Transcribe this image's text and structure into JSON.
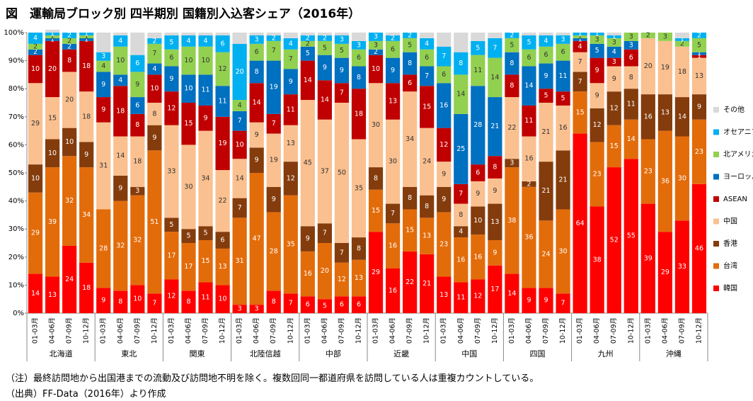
{
  "chart_data": {
    "type": "stacked_bar",
    "title": "図　運輸局ブロック別 四半期別 国籍別入込客シェア（2016年）",
    "categories": [
      "01-03月",
      "04-06月",
      "07-09月",
      "10-12月",
      "01-03月",
      "04-06月",
      "07-09月",
      "10-12月",
      "01-03月",
      "04-06月",
      "07-09月",
      "10-12月",
      "01-03月",
      "04-06月",
      "07-09月",
      "10-12月",
      "01-03月",
      "04-06月",
      "07-09月",
      "10-12月",
      "01-03月",
      "04-06月",
      "07-09月",
      "10-12月",
      "01-03月",
      "04-06月",
      "07-09月",
      "10-12月",
      "01-03月",
      "04-06月",
      "07-09月",
      "10-12月",
      "01-03月",
      "04-06月",
      "07-09月",
      "10-12月",
      "01-03月",
      "04-06月",
      "07-09月",
      "10-12月"
    ],
    "groups": [
      "北海道",
      "東北",
      "関東",
      "北陸信越",
      "中部",
      "近畿",
      "中国",
      "四国",
      "九州",
      "沖縄"
    ],
    "series": [
      {
        "name": "韓国",
        "color": "#ff0000",
        "data_labels": true,
        "values": [
          14,
          13,
          24,
          18,
          9,
          8,
          10,
          7,
          12,
          8,
          11,
          10,
          3,
          3,
          8,
          7,
          6,
          5,
          6,
          6,
          29,
          16,
          22,
          21,
          13,
          11,
          12,
          17,
          14,
          9,
          9,
          7,
          64,
          38,
          52,
          55,
          39,
          29,
          33,
          46
        ]
      },
      {
        "name": "台湾",
        "color": "#e36c0a",
        "data_labels": true,
        "values": [
          29,
          39,
          32,
          34,
          28,
          32,
          32,
          51,
          17,
          17,
          15,
          13,
          31,
          47,
          28,
          35,
          16,
          20,
          12,
          13,
          15,
          16,
          15,
          13,
          23,
          16,
          16,
          9,
          38,
          36,
          24,
          30,
          15,
          23,
          15,
          14,
          23,
          36,
          30,
          23
        ]
      },
      {
        "name": "香港",
        "color": "#843c0c",
        "data_labels": true,
        "values": [
          10,
          10,
          10,
          9,
          0,
          9,
          3,
          9,
          5,
          5,
          5,
          6,
          7,
          9,
          9,
          12,
          9,
          7,
          7,
          8,
          8,
          7,
          8,
          8,
          9,
          4,
          10,
          13,
          3,
          2,
          21,
          21,
          7,
          12,
          12,
          11,
          16,
          13,
          14,
          9
        ]
      },
      {
        "name": "中国",
        "color": "#fac090",
        "data_labels": true,
        "values": [
          29,
          15,
          20,
          18,
          31,
          14,
          18,
          8,
          33,
          30,
          34,
          22,
          14,
          9,
          19,
          13,
          45,
          37,
          50,
          35,
          30,
          30,
          34,
          24,
          9,
          8,
          9,
          9,
          22,
          16,
          21,
          16,
          7,
          9,
          9,
          8,
          20,
          19,
          18,
          13
        ]
      },
      {
        "name": "ASEAN",
        "color": "#c00000",
        "data_labels": true,
        "values": [
          10,
          20,
          8,
          18,
          9,
          18,
          8,
          10,
          12,
          15,
          9,
          19,
          10,
          14,
          7,
          11,
          14,
          14,
          7,
          18,
          10,
          13,
          6,
          15,
          12,
          7,
          6,
          8,
          8,
          11,
          5,
          5,
          4,
          9,
          3,
          6,
          0,
          0,
          0,
          1
        ]
      },
      {
        "name": "ヨーロッパ",
        "color": "#0070c0",
        "data_labels": true,
        "values": [
          2,
          1,
          2,
          1,
          9,
          4,
          6,
          4,
          9,
          10,
          11,
          11,
          7,
          8,
          19,
          9,
          5,
          9,
          9,
          8,
          2,
          9,
          8,
          7,
          16,
          25,
          28,
          21,
          8,
          14,
          9,
          11,
          1,
          5,
          4,
          3,
          0,
          0,
          0,
          1
        ]
      },
      {
        "name": "北アメリカ",
        "color": "#92d050",
        "data_labels": true,
        "values": [
          2,
          1,
          2,
          1,
          4,
          10,
          9,
          7,
          6,
          10,
          10,
          12,
          4,
          6,
          7,
          7,
          2,
          5,
          5,
          6,
          3,
          6,
          5,
          6,
          6,
          14,
          11,
          14,
          5,
          6,
          6,
          6,
          1,
          3,
          3,
          3,
          2,
          3,
          2,
          5
        ]
      },
      {
        "name": "オセアニア",
        "color": "#00b0f0",
        "data_labels": true,
        "values": [
          4,
          1,
          2,
          1,
          3,
          4,
          6,
          2,
          5,
          4,
          4,
          6,
          20,
          3,
          2,
          4,
          2,
          2,
          3,
          3,
          3,
          2,
          2,
          4,
          7,
          8,
          5,
          7,
          2,
          5,
          4,
          3,
          1,
          1,
          1,
          0,
          0,
          0,
          1,
          2
        ]
      },
      {
        "name": "その他",
        "color": "#d9d9d9",
        "data_labels": false,
        "values": [
          0,
          1,
          0,
          0,
          7,
          1,
          8,
          2,
          1,
          1,
          1,
          1,
          4,
          1,
          1,
          2,
          1,
          1,
          1,
          3,
          0,
          1,
          0,
          2,
          5,
          7,
          3,
          2,
          0,
          1,
          1,
          1,
          0,
          0,
          1,
          0,
          0,
          0,
          2,
          0
        ]
      }
    ],
    "ylim": [
      0,
      100
    ],
    "yticks": [
      {
        "value": 0,
        "label": "0%"
      },
      {
        "value": 10,
        "label": "10%"
      },
      {
        "value": 20,
        "label": "20%"
      },
      {
        "value": 30,
        "label": "30%"
      },
      {
        "value": 40,
        "label": "40%"
      },
      {
        "value": 50,
        "label": "50%"
      },
      {
        "value": 60,
        "label": "60%"
      },
      {
        "value": 70,
        "label": "70%"
      },
      {
        "value": 80,
        "label": "80%"
      },
      {
        "value": 90,
        "label": "90%"
      },
      {
        "value": 100,
        "label": "100%"
      }
    ],
    "grid": false,
    "legend": "right"
  },
  "notes": [
    "（注）最終訪問地から出国港までの流動及び訪問地不明を除く。複数回同一都道府県を訪問している人は重複カウントしている。",
    "（出典）FF-Data（2016年）より作成"
  ]
}
